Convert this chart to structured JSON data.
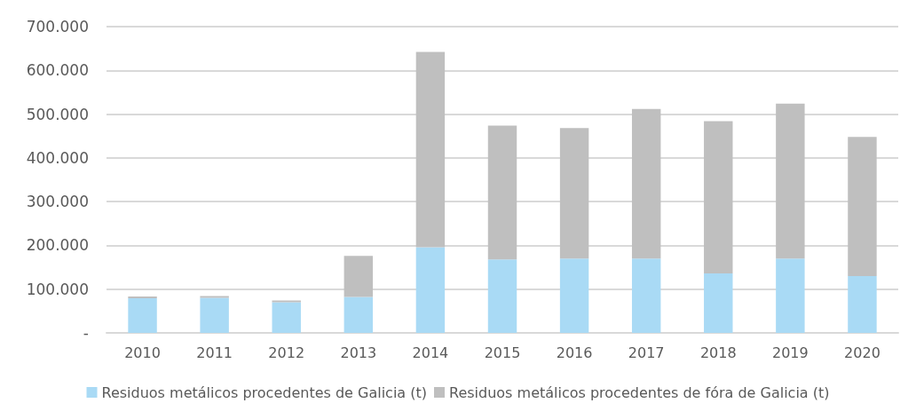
{
  "chart_data": {
    "type": "bar",
    "stacked": true,
    "categories": [
      "2010",
      "2011",
      "2012",
      "2013",
      "2014",
      "2015",
      "2016",
      "2017",
      "2018",
      "2019",
      "2020"
    ],
    "series": [
      {
        "name": "Residuos metálicos procedentes de Galicia (t)",
        "color": "#a9daf5",
        "values": [
          79000,
          80000,
          70000,
          82000,
          196000,
          168000,
          170000,
          170000,
          136000,
          170000,
          130000
        ]
      },
      {
        "name": "Residuos metálicos procedentes de fóra de Galicia (t)",
        "color": "#bfbfbf",
        "values": [
          4000,
          4000,
          4000,
          94000,
          446000,
          306000,
          298000,
          342000,
          348000,
          354000,
          318000
        ]
      }
    ],
    "ylim": [
      0,
      700000
    ],
    "yticks": [
      {
        "value": 0,
        "label": "-"
      },
      {
        "value": 100000,
        "label": "100.000"
      },
      {
        "value": 200000,
        "label": "200.000"
      },
      {
        "value": 300000,
        "label": "300.000"
      },
      {
        "value": 400000,
        "label": "400.000"
      },
      {
        "value": 500000,
        "label": "500.000"
      },
      {
        "value": 600000,
        "label": "600.000"
      },
      {
        "value": 700000,
        "label": "700.000"
      }
    ],
    "grid": "y",
    "legend": "bottom"
  }
}
